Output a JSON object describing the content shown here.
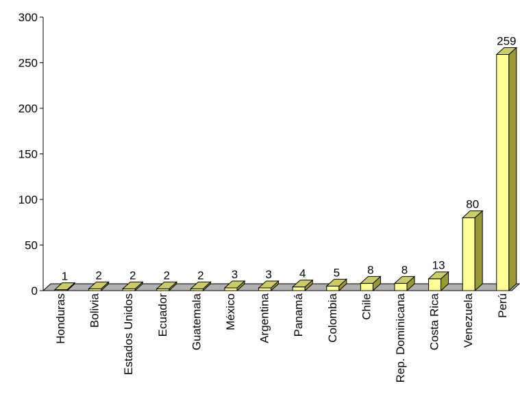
{
  "chart_data": {
    "type": "bar",
    "categories": [
      "Honduras",
      "Bolivia",
      "Estados Unidos",
      "Ecuador",
      "Guatemala",
      "México",
      "Argentina",
      "Panamá",
      "Colombia",
      "Chile",
      "Rep. Dominicana",
      "Costa Rica",
      "Venezuela",
      "Perú"
    ],
    "values": [
      1,
      2,
      2,
      2,
      2,
      3,
      3,
      4,
      5,
      8,
      8,
      13,
      80,
      259
    ],
    "yticks": [
      "0",
      "50",
      "100",
      "150",
      "200",
      "250",
      "300"
    ],
    "ylim": [
      0,
      300
    ],
    "grid": false,
    "legend": "none",
    "colors": {
      "bar_front": "#ffff99",
      "bar_side": "#999933",
      "bar_top": "#cccc66",
      "floor": "#b0b0b0",
      "axis": "#000000"
    }
  }
}
